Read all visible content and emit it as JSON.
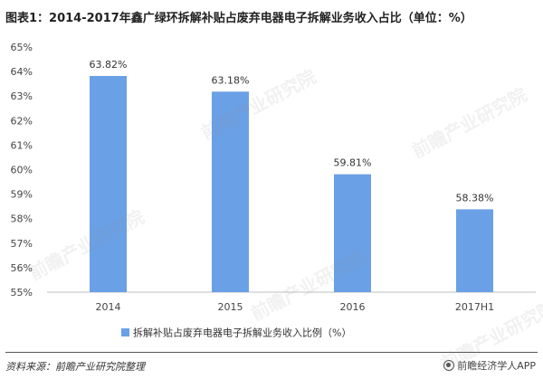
{
  "chart_data": {
    "type": "bar",
    "title": "图表1：2014-2017年鑫广绿环拆解补贴占废弃电器电子拆解业务收入占比（单位：%）",
    "categories": [
      "2014",
      "2015",
      "2016",
      "2017H1"
    ],
    "series": [
      {
        "name": "拆解补贴占废弃电器电子拆解业务收入比例（%）",
        "values": [
          63.82,
          63.18,
          59.81,
          58.38
        ],
        "labels": [
          "63.82%",
          "63.18%",
          "59.81%",
          "58.38%"
        ],
        "color": "#6aa0e6"
      }
    ],
    "ylim": [
      55,
      65
    ],
    "yticks": [
      "55%",
      "56%",
      "57%",
      "58%",
      "59%",
      "60%",
      "61%",
      "62%",
      "63%",
      "64%",
      "65%"
    ],
    "grid": false,
    "legend": "bottom"
  },
  "footer": {
    "source": "资料来源：前瞻产业研究院整理",
    "brand": "前瞻经济学人APP"
  },
  "watermark": {
    "text": "前瞻产业研究院"
  }
}
